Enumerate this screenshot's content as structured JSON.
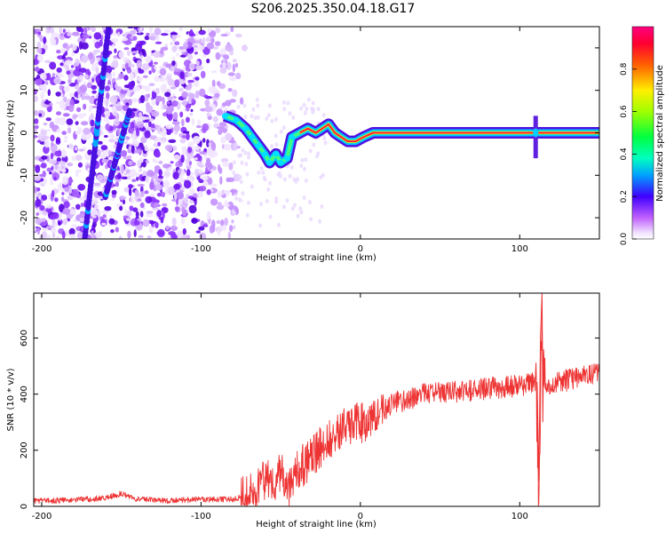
{
  "page": {
    "title": "S206.2025.350.04.18.G17"
  },
  "chart_data": [
    {
      "type": "heatmap",
      "title": "S206.2025.350.04.18.G17",
      "xlabel": "Height of straight line (km)",
      "ylabel": "Frequency (Hz)",
      "xlim": [
        -205,
        150
      ],
      "ylim": [
        -25,
        25
      ],
      "x_ticks": [
        -200,
        -100,
        0,
        100
      ],
      "x_tick_labels": [
        "-200",
        "-100",
        "0",
        "100"
      ],
      "y_ticks": [
        20,
        10,
        0,
        -10,
        -20
      ],
      "y_tick_labels": [
        "20",
        "10",
        "0",
        "-10",
        "-20"
      ],
      "grid": false,
      "colorbar": {
        "label": "Normalized spectral amplitude",
        "range": [
          0,
          1
        ],
        "ticks": [
          0.0,
          0.2,
          0.4,
          0.6,
          0.8
        ],
        "tick_labels": [
          "0.0",
          "0.2",
          "0.4",
          "0.6",
          "0.8"
        ]
      },
      "features": {
        "diagonal_traces": [
          {
            "x_start": -173,
            "y_start": -25,
            "x_end": -158,
            "y_end": 25
          },
          {
            "x_start": -160,
            "y_start": -15,
            "x_end": -145,
            "y_end": 5
          }
        ],
        "main_ridge": [
          [
            -85,
            4
          ],
          [
            -78,
            3
          ],
          [
            -72,
            1
          ],
          [
            -68,
            -1
          ],
          [
            -64,
            -3
          ],
          [
            -60,
            -5
          ],
          [
            -57,
            -7
          ],
          [
            -53,
            -5
          ],
          [
            -50,
            -7
          ],
          [
            -46,
            -6
          ],
          [
            -43,
            -1
          ],
          [
            -38,
            0
          ],
          [
            -33,
            1
          ],
          [
            -28,
            0
          ],
          [
            -24,
            1
          ],
          [
            -20,
            2
          ],
          [
            -16,
            0
          ],
          [
            -12,
            -1
          ],
          [
            -8,
            -2
          ],
          [
            -3,
            -2
          ],
          [
            2,
            -1
          ],
          [
            8,
            0
          ],
          [
            20,
            0
          ],
          [
            40,
            0
          ],
          [
            60,
            0
          ],
          [
            80,
            0
          ],
          [
            100,
            0
          ],
          [
            110,
            0
          ],
          [
            150,
            0
          ]
        ],
        "noise_x_range": [
          -205,
          -80
        ]
      }
    },
    {
      "type": "line",
      "xlabel": "Height of straight line (km)",
      "ylabel": "SNR (10 * v/v)",
      "xlim": [
        -205,
        150
      ],
      "ylim": [
        0,
        760
      ],
      "x_ticks": [
        -200,
        -100,
        0,
        100
      ],
      "x_tick_labels": [
        "-200",
        "-100",
        "0",
        "100"
      ],
      "y_ticks": [
        0,
        200,
        400,
        600
      ],
      "y_tick_labels": [
        "0",
        "200",
        "400",
        "600"
      ],
      "grid": false,
      "series": [
        {
          "name": "SNR",
          "color": "#ee3333",
          "x": [
            -205,
            -180,
            -160,
            -150,
            -140,
            -120,
            -100,
            -80,
            -70,
            -60,
            -55,
            -50,
            -45,
            -40,
            -35,
            -30,
            -20,
            -10,
            0,
            10,
            20,
            30,
            40,
            60,
            80,
            100,
            110,
            112,
            114,
            116,
            120,
            130,
            140,
            150
          ],
          "y": [
            20,
            22,
            30,
            45,
            25,
            20,
            25,
            25,
            40,
            100,
            90,
            120,
            60,
            130,
            150,
            180,
            240,
            280,
            300,
            320,
            370,
            380,
            400,
            410,
            420,
            430,
            450,
            100,
            690,
            440,
            440,
            450,
            460,
            480
          ]
        }
      ]
    }
  ]
}
